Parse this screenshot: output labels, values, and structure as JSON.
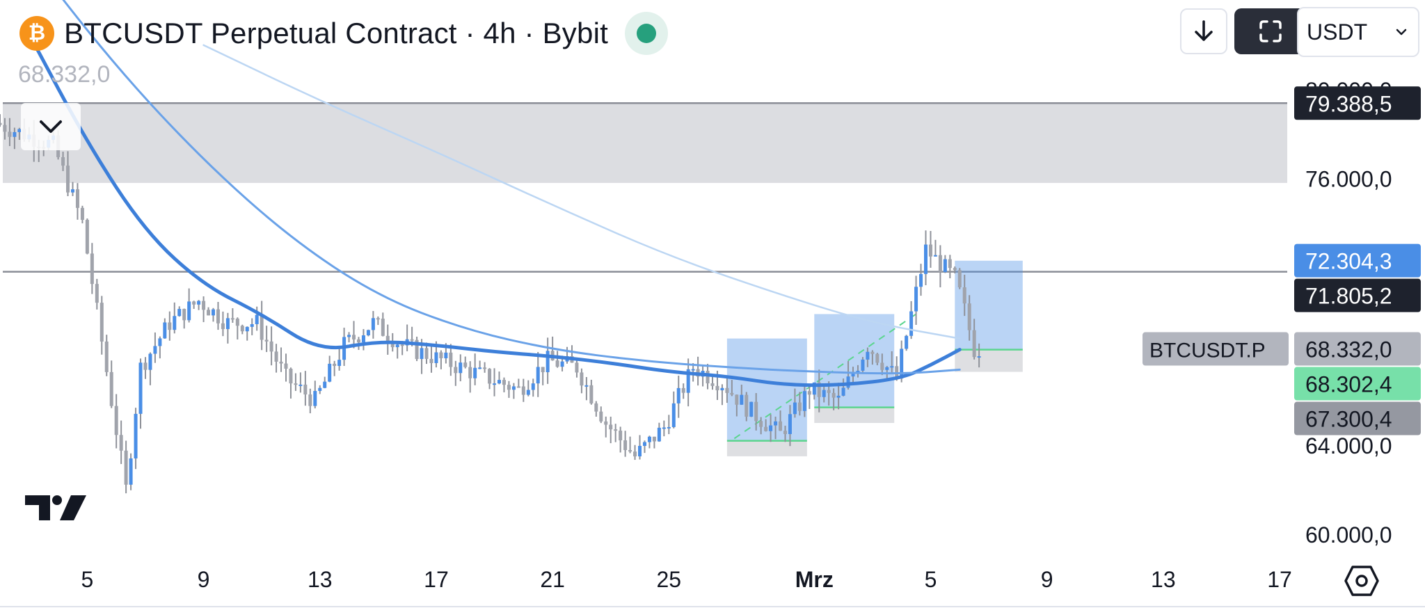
{
  "header": {
    "coin_icon": "bitcoin-icon",
    "title": "BTCUSDT Perpetual Contract · 4h · Bybit",
    "last_price": "68.332,0",
    "status_color": "#26a07d"
  },
  "toolbar": {
    "download_icon": "arrow-down-icon",
    "fullscreen_icon": "fullscreen-icon",
    "currency": "USDT"
  },
  "chart_data": {
    "type": "candlestick",
    "symbol": "BTCUSDT.P",
    "interval": "4h",
    "exchange": "Bybit",
    "x_range": [
      "2024-02-02",
      "2024-03-22"
    ],
    "y_range": [
      56800,
      80900
    ],
    "grid": false,
    "x_tick_labels": [
      {
        "date": "2024-02-05",
        "label": "5"
      },
      {
        "date": "2024-02-09",
        "label": "9"
      },
      {
        "date": "2024-02-13",
        "label": "13"
      },
      {
        "date": "2024-02-17",
        "label": "17"
      },
      {
        "date": "2024-02-21",
        "label": "21"
      },
      {
        "date": "2024-02-25",
        "label": "25"
      },
      {
        "date": "2024-03-01",
        "label": "Mrz"
      },
      {
        "date": "2024-03-05",
        "label": "5"
      },
      {
        "date": "2024-03-09",
        "label": "9"
      },
      {
        "date": "2024-03-13",
        "label": "13"
      },
      {
        "date": "2024-03-17",
        "label": "17"
      }
    ],
    "y_tick_labels": [
      {
        "value": 80000,
        "label": "80.000,0"
      },
      {
        "value": 76000,
        "label": "76.000,0"
      },
      {
        "value": 64000,
        "label": "64.000,0"
      },
      {
        "value": 60000,
        "label": "60.000,0"
      }
    ],
    "price_labels": [
      {
        "value": 79388.5,
        "label": "79.388,5",
        "bg": "#1e222d",
        "color": "#ffffff"
      },
      {
        "value": 72304.3,
        "label": "72.304,3",
        "bg": "#4a8ee6",
        "color": "#ffffff"
      },
      {
        "value": 71805.2,
        "label": "71.805,2",
        "bg": "#1e222d",
        "color": "#ffffff"
      },
      {
        "value": 68332.0,
        "label": "68.332,0",
        "bg": "#b2b5be",
        "color": "#131722",
        "tag": "BTCUSDT.P"
      },
      {
        "value": 68302.4,
        "label": "68.302,4",
        "bg": "#77e0a9",
        "color": "#131722"
      },
      {
        "value": 67300.4,
        "label": "67.300,4",
        "bg": "#9598a1",
        "color": "#131722"
      }
    ],
    "horizontal_lines": [
      79388.5,
      71805.2
    ],
    "zone": {
      "from": 75800,
      "to": 79388.5,
      "color": "#dcdde1"
    },
    "moving_averages": [
      {
        "color": "#3d7fd9",
        "width": 5,
        "points": [
          [
            "2024-02-03",
            82500
          ],
          [
            "2024-02-05",
            77600
          ],
          [
            "2024-02-07",
            73600
          ],
          [
            "2024-02-09",
            71200
          ],
          [
            "2024-02-11",
            69900
          ],
          [
            "2024-02-13",
            68200
          ],
          [
            "2024-02-15",
            68700
          ],
          [
            "2024-02-17",
            68500
          ],
          [
            "2024-02-19",
            68200
          ],
          [
            "2024-02-21",
            68000
          ],
          [
            "2024-02-23",
            67700
          ],
          [
            "2024-02-25",
            67300
          ],
          [
            "2024-02-27",
            67100
          ],
          [
            "2024-02-29",
            66700
          ],
          [
            "2024-03-02",
            66700
          ],
          [
            "2024-03-04",
            67000
          ],
          [
            "2024-03-05",
            67600
          ],
          [
            "2024-03-06",
            68300
          ]
        ]
      },
      {
        "color": "#6aa2e8",
        "width": 3,
        "points": [
          [
            "2024-02-03",
            86000
          ],
          [
            "2024-02-06",
            81000
          ],
          [
            "2024-02-09",
            76800
          ],
          [
            "2024-02-12",
            73300
          ],
          [
            "2024-02-15",
            70700
          ],
          [
            "2024-02-18",
            69200
          ],
          [
            "2024-02-21",
            68300
          ],
          [
            "2024-02-24",
            67800
          ],
          [
            "2024-02-27",
            67500
          ],
          [
            "2024-03-01",
            67300
          ],
          [
            "2024-03-04",
            67200
          ],
          [
            "2024-03-06",
            67400
          ]
        ]
      },
      {
        "color": "#bcd6f3",
        "width": 2.5,
        "points": [
          [
            "2024-02-09",
            82000
          ],
          [
            "2024-02-13",
            79500
          ],
          [
            "2024-02-17",
            77200
          ],
          [
            "2024-02-21",
            74800
          ],
          [
            "2024-02-25",
            72500
          ],
          [
            "2024-02-29",
            70700
          ],
          [
            "2024-03-03",
            69500
          ],
          [
            "2024-03-06",
            68800
          ]
        ]
      }
    ],
    "position_boxes": [
      {
        "x0": "2024-02-27T00:00",
        "x1": "2024-02-29T18:00",
        "entry": 64200,
        "stop": 63500,
        "target": 68800
      },
      {
        "x0": "2024-03-01T00:00",
        "x1": "2024-03-03T18:00",
        "entry": 65700,
        "stop": 65000,
        "target": 69900
      },
      {
        "x0": "2024-03-05T20:00",
        "x1": "2024-03-08T04:00",
        "entry": 68300,
        "stop": 67300,
        "target": 72300
      }
    ],
    "trend_segments": [
      [
        [
          "2024-02-27T06:00",
          64300
        ],
        [
          "2024-03-04T12:00",
          69900
        ]
      ]
    ],
    "anchors": [
      {
        "date": "2024-02-02",
        "price": 78500
      },
      {
        "date": "2024-02-04",
        "price": 77500
      },
      {
        "date": "2024-02-05",
        "price": 74000
      },
      {
        "date": "2024-02-06",
        "price": 66000
      },
      {
        "date": "2024-02-06T12:00",
        "price": 62000
      },
      {
        "date": "2024-02-07",
        "price": 67500
      },
      {
        "date": "2024-02-08",
        "price": 69500
      },
      {
        "date": "2024-02-09",
        "price": 70500
      },
      {
        "date": "2024-02-10",
        "price": 69500
      },
      {
        "date": "2024-02-11",
        "price": 69500
      },
      {
        "date": "2024-02-12",
        "price": 67000
      },
      {
        "date": "2024-02-13",
        "price": 66000
      },
      {
        "date": "2024-02-14",
        "price": 68500
      },
      {
        "date": "2024-02-15",
        "price": 69500
      },
      {
        "date": "2024-02-16",
        "price": 68500
      },
      {
        "date": "2024-02-17",
        "price": 68000
      },
      {
        "date": "2024-02-18",
        "price": 67500
      },
      {
        "date": "2024-02-19",
        "price": 67000
      },
      {
        "date": "2024-02-20",
        "price": 66500
      },
      {
        "date": "2024-02-21",
        "price": 67800
      },
      {
        "date": "2024-02-22",
        "price": 67500
      },
      {
        "date": "2024-02-23",
        "price": 65000
      },
      {
        "date": "2024-02-24",
        "price": 63500
      },
      {
        "date": "2024-02-25",
        "price": 64800
      },
      {
        "date": "2024-02-26",
        "price": 67500
      },
      {
        "date": "2024-02-27",
        "price": 66800
      },
      {
        "date": "2024-02-28",
        "price": 65500
      },
      {
        "date": "2024-02-29",
        "price": 64500
      },
      {
        "date": "2024-03-01",
        "price": 66500
      },
      {
        "date": "2024-03-02",
        "price": 66000
      },
      {
        "date": "2024-03-03",
        "price": 68500
      },
      {
        "date": "2024-03-04",
        "price": 67000
      },
      {
        "date": "2024-03-05",
        "price": 72800
      },
      {
        "date": "2024-03-06",
        "price": 71500
      },
      {
        "date": "2024-03-06T06:00",
        "price": 70500
      },
      {
        "date": "2024-03-06T16:00",
        "price": 68332
      }
    ]
  }
}
